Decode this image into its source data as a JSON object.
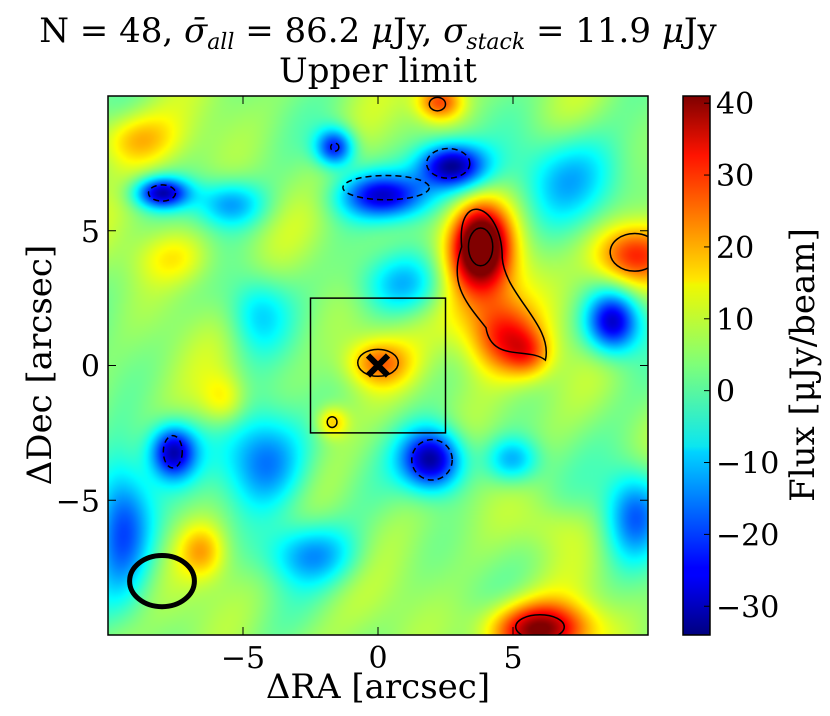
{
  "chart_data": {
    "type": "heatmap",
    "title_line1": "N = 48, σ̄_all = 86.2 μJy, σ_stack = 11.9 μJy",
    "title_parts": {
      "n": "N = 48, ",
      "sigma_all_sym": "σ̄",
      "sigma_all_sub": "all",
      "sigma_all_val": " = 86.2 ",
      "mu1": "μ",
      "jy1": "Jy, ",
      "sigma_stack_sym": "σ",
      "sigma_stack_sub": "stack",
      "sigma_stack_val": " = 11.9 ",
      "mu2": "μ",
      "jy2": "Jy"
    },
    "title_line2": "Upper limit",
    "xlabel": "ΔRA [arcsec]",
    "ylabel": "ΔDec [arcsec]",
    "xlim": [
      -10,
      10
    ],
    "ylim": [
      -10,
      10
    ],
    "xticks": [
      -5,
      0,
      5
    ],
    "xtick_labels": [
      "−5",
      "0",
      "5"
    ],
    "yticks": [
      5,
      0,
      -5
    ],
    "ytick_labels": [
      "5",
      "0",
      "−5"
    ],
    "colorbar": {
      "label": "Flux [μJy/beam]",
      "colormap": "jet",
      "range": [
        -34,
        41
      ],
      "ticks": [
        40,
        30,
        20,
        10,
        0,
        -10,
        -20,
        -30
      ],
      "tick_labels": [
        "40",
        "30",
        "20",
        "10",
        "0",
        "−10",
        "−20",
        "−30"
      ]
    },
    "stacked_position_marker": {
      "x": 0.0,
      "y": 0.0,
      "symbol": "×"
    },
    "inner_box": {
      "x": [
        -2.5,
        2.5
      ],
      "y": [
        -2.5,
        2.5
      ]
    },
    "beam_ellipse": {
      "x": -8.0,
      "y": -8.0,
      "width": 2.4,
      "height": 1.9
    },
    "features": [
      {
        "x": 0.0,
        "y": 0.1,
        "sx": 0.8,
        "sy": 0.6,
        "flux": 22
      },
      {
        "x": 3.8,
        "y": 4.5,
        "sx": 0.7,
        "sy": 1.0,
        "flux": 40
      },
      {
        "x": 3.9,
        "y": 3.0,
        "sx": 1.2,
        "sy": 1.8,
        "flux": 22
      },
      {
        "x": 4.7,
        "y": 1.0,
        "sx": 0.9,
        "sy": 0.9,
        "flux": 24
      },
      {
        "x": 5.6,
        "y": 0.4,
        "sx": 0.6,
        "sy": 0.6,
        "flux": 18
      },
      {
        "x": 9.4,
        "y": 4.1,
        "sx": 1.0,
        "sy": 0.8,
        "flux": 30
      },
      {
        "x": 6.0,
        "y": -9.8,
        "sx": 1.3,
        "sy": 0.7,
        "flux": 40
      },
      {
        "x": 2.3,
        "y": 9.8,
        "sx": 0.6,
        "sy": 0.5,
        "flux": 28
      },
      {
        "x": -1.7,
        "y": -2.1,
        "sx": 0.4,
        "sy": 0.4,
        "flux": 18
      },
      {
        "x": -5.7,
        "y": -1.3,
        "sx": 0.6,
        "sy": 0.7,
        "flux": 16
      },
      {
        "x": -6.5,
        "y": -6.9,
        "sx": 0.6,
        "sy": 0.7,
        "flux": 18
      },
      {
        "x": -9.0,
        "y": 8.4,
        "sx": 1.1,
        "sy": 0.7,
        "flux": 18
      },
      {
        "x": -7.5,
        "y": 4.0,
        "sx": 1.0,
        "sy": 0.7,
        "flux": 14
      },
      {
        "x": 6.5,
        "y": -6.0,
        "sx": 0.9,
        "sy": 0.7,
        "flux": 10
      },
      {
        "x": 2.7,
        "y": 7.4,
        "sx": 0.9,
        "sy": 0.6,
        "flux": -33
      },
      {
        "x": 0.3,
        "y": 6.3,
        "sx": 1.2,
        "sy": 0.6,
        "flux": -26
      },
      {
        "x": -1.6,
        "y": 8.1,
        "sx": 0.5,
        "sy": 0.5,
        "flux": -24
      },
      {
        "x": -8.0,
        "y": 6.4,
        "sx": 0.7,
        "sy": 0.4,
        "flux": -28
      },
      {
        "x": 2.0,
        "y": -3.5,
        "sx": 0.8,
        "sy": 0.8,
        "flux": -33
      },
      {
        "x": -7.6,
        "y": -3.2,
        "sx": 0.6,
        "sy": 0.7,
        "flux": -28
      },
      {
        "x": 8.7,
        "y": 1.6,
        "sx": 0.7,
        "sy": 0.8,
        "flux": -30
      },
      {
        "x": -4.2,
        "y": -3.5,
        "sx": 1.1,
        "sy": 1.3,
        "flux": -18
      },
      {
        "x": -9.5,
        "y": -5.8,
        "sx": 0.8,
        "sy": 1.8,
        "flux": -20
      },
      {
        "x": -5.5,
        "y": 6.0,
        "sx": 0.9,
        "sy": 0.6,
        "flux": -12
      },
      {
        "x": 9.5,
        "y": -5.5,
        "sx": 0.8,
        "sy": 1.2,
        "flux": -18
      },
      {
        "x": 5.0,
        "y": -3.5,
        "sx": 0.7,
        "sy": 0.6,
        "flux": -12
      },
      {
        "x": -2.5,
        "y": -7.0,
        "sx": 1.2,
        "sy": 0.8,
        "flux": -12
      },
      {
        "x": 1.0,
        "y": 3.0,
        "sx": 1.2,
        "sy": 0.8,
        "flux": -10
      },
      {
        "x": -4.5,
        "y": 2.0,
        "sx": 0.8,
        "sy": 1.0,
        "flux": -8
      },
      {
        "x": 7.0,
        "y": 7.0,
        "sx": 1.5,
        "sy": 1.2,
        "flux": -10
      }
    ],
    "contours": {
      "solid": [
        {
          "x": 0.0,
          "y": 0.1,
          "rx": 0.75,
          "ry": 0.5
        },
        {
          "x": -1.7,
          "y": -2.1,
          "rx": 0.18,
          "ry": 0.2
        },
        {
          "x": 3.8,
          "y": 4.4,
          "rx": 0.45,
          "ry": 0.7
        },
        {
          "x": 6.0,
          "y": -9.7,
          "rx": 0.9,
          "ry": 0.45
        },
        {
          "x": 2.2,
          "y": 9.7,
          "rx": 0.3,
          "ry": 0.25
        },
        {
          "x": 9.5,
          "y": 4.2,
          "rx": 0.9,
          "ry": 0.7
        }
      ],
      "dashed": [
        {
          "x": 2.6,
          "y": 7.5,
          "rx": 0.8,
          "ry": 0.55
        },
        {
          "x": 0.3,
          "y": 6.6,
          "rx": 1.6,
          "ry": 0.45
        },
        {
          "x": -8.0,
          "y": 6.4,
          "rx": 0.5,
          "ry": 0.3
        },
        {
          "x": 2.0,
          "y": -3.5,
          "rx": 0.75,
          "ry": 0.75
        },
        {
          "x": -7.6,
          "y": -3.2,
          "rx": 0.35,
          "ry": 0.6
        },
        {
          "x": -1.6,
          "y": 8.1,
          "rx": 0.15,
          "ry": 0.15
        }
      ]
    }
  }
}
